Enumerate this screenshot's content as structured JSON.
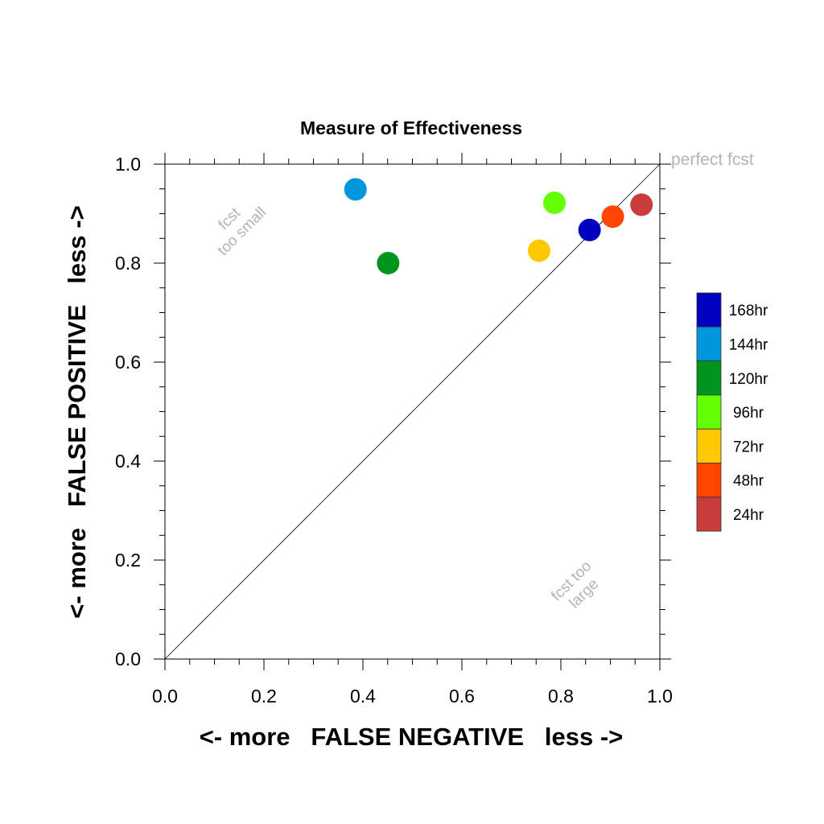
{
  "chart_data": {
    "type": "scatter",
    "title": "Measure of Effectiveness",
    "xlabel": "<- more   FALSE NEGATIVE   less ->",
    "ylabel": "<- more   FALSE POSITIVE   less ->",
    "xlim": [
      0.0,
      1.0
    ],
    "ylim": [
      0.0,
      1.0
    ],
    "x_ticks": [
      0.0,
      0.2,
      0.4,
      0.6,
      0.8,
      1.0
    ],
    "y_ticks": [
      0.0,
      0.2,
      0.4,
      0.6,
      0.8,
      1.0
    ],
    "x_tick_labels": [
      "0.0",
      "0.2",
      "0.4",
      "0.6",
      "0.8",
      "1.0"
    ],
    "y_tick_labels": [
      "0.0",
      "0.2",
      "0.4",
      "0.6",
      "0.8",
      "1.0"
    ],
    "grid": false,
    "legend_position": "right",
    "diagonal_line": true,
    "annotations": {
      "perfect": "perfect fcst",
      "too_small": [
        "fcst",
        "too small"
      ],
      "too_large": [
        "fcst too",
        "large"
      ]
    },
    "series": [
      {
        "name": "168hr",
        "color": "#0000c0",
        "x": 0.858,
        "y": 0.867
      },
      {
        "name": "144hr",
        "color": "#0096dc",
        "x": 0.385,
        "y": 0.949
      },
      {
        "name": "120hr",
        "color": "#00961e",
        "x": 0.451,
        "y": 0.8
      },
      {
        "name": "96hr",
        "color": "#64ff00",
        "x": 0.787,
        "y": 0.922
      },
      {
        "name": "72hr",
        "color": "#ffc800",
        "x": 0.756,
        "y": 0.825
      },
      {
        "name": "48hr",
        "color": "#ff4600",
        "x": 0.905,
        "y": 0.894
      },
      {
        "name": "24hr",
        "color": "#c83c3c",
        "x": 0.963,
        "y": 0.918
      }
    ]
  }
}
